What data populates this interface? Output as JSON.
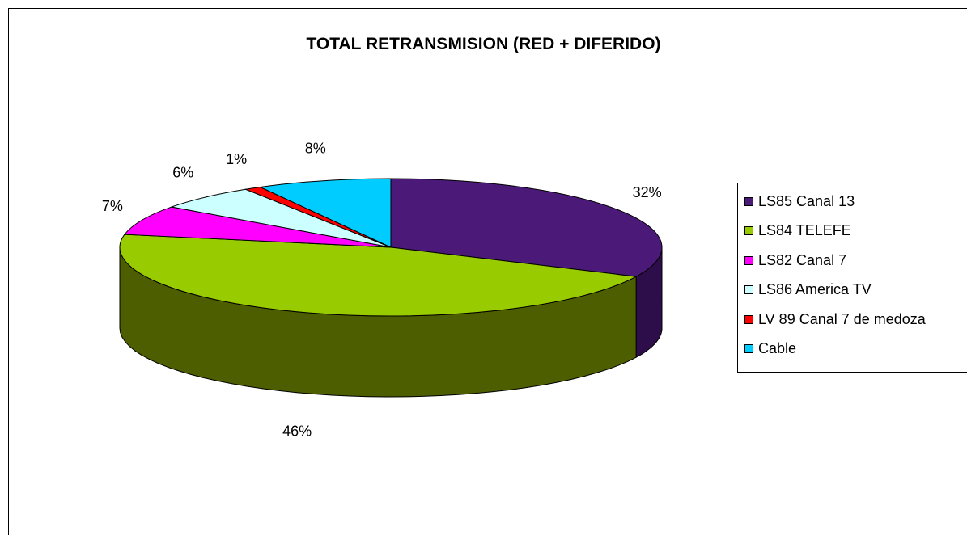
{
  "chart_data": {
    "type": "pie",
    "three_d": true,
    "title": "TOTAL RETRANSMISION (RED + DIFERIDO)",
    "slices": [
      {
        "name": "LS85 Canal 13",
        "value": 32,
        "label": "32%",
        "color": "#4b1a78",
        "side_color": "#2d0e4a"
      },
      {
        "name": "LS84 TELEFE",
        "value": 46,
        "label": "46%",
        "color": "#99cc00",
        "side_color": "#4d5e00"
      },
      {
        "name": "LS82 Canal 7",
        "value": 7,
        "label": "7%",
        "color": "#ff00ff",
        "side_color": "#990099"
      },
      {
        "name": "LS86 America TV",
        "value": 6,
        "label": "6%",
        "color": "#ccffff",
        "side_color": "#7fa6a6"
      },
      {
        "name": "LV 89  Canal 7 de medoza",
        "value": 1,
        "label": "1%",
        "color": "#ff0000",
        "side_color": "#990000"
      },
      {
        "name": "Cable",
        "value": 8,
        "label": "8%",
        "color": "#00ccff",
        "side_color": "#007a99"
      }
    ],
    "legend_placement": "right"
  }
}
